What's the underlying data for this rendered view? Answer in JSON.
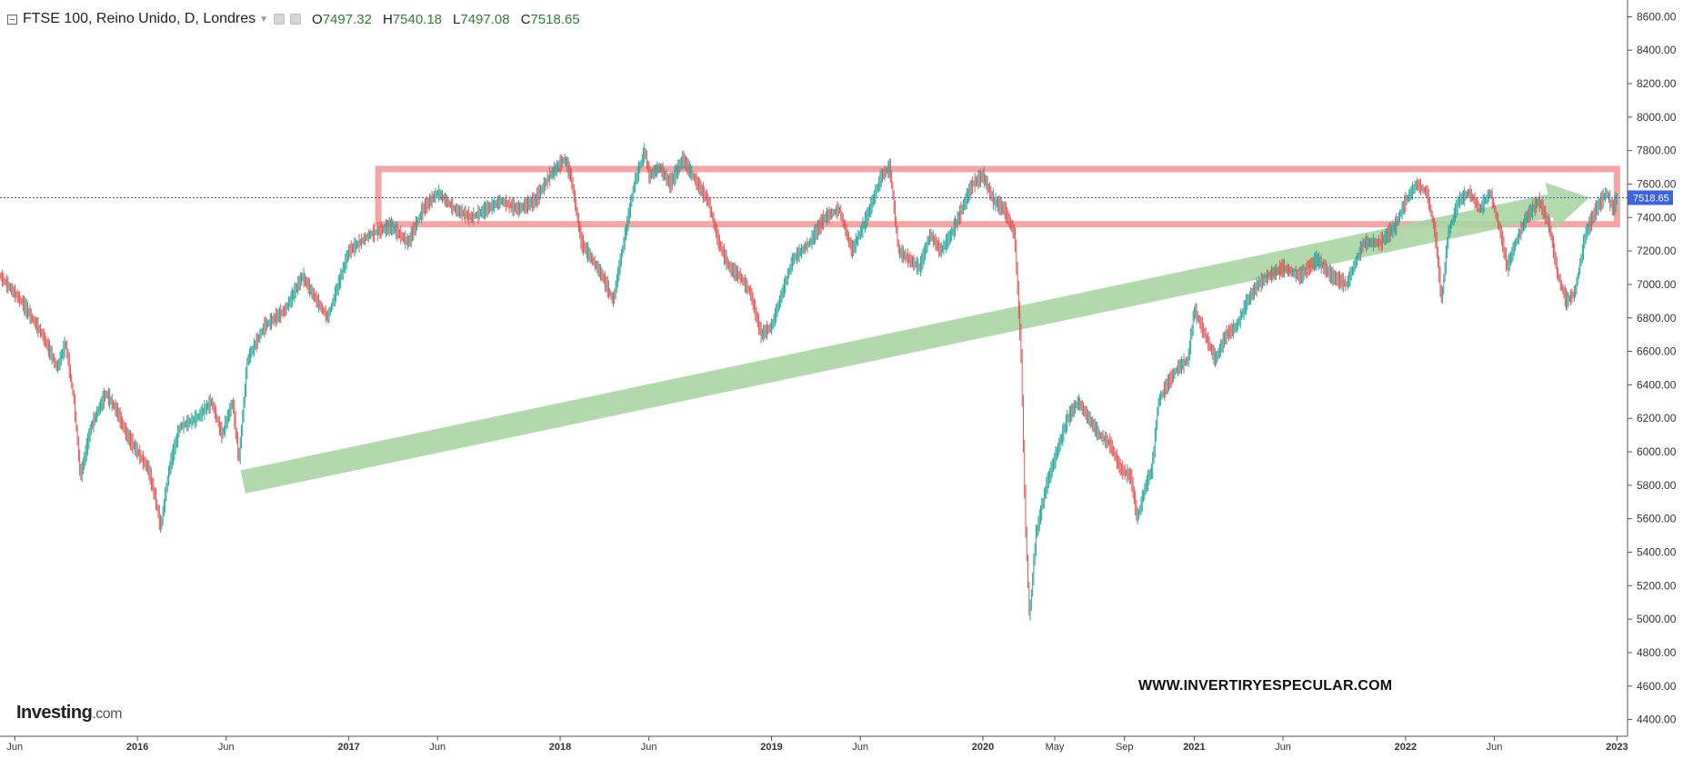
{
  "header": {
    "symbol": "FTSE 100, Reino Unido, D, Londres",
    "open_label": "O",
    "open": "7497.32",
    "high_label": "H",
    "high": "7540.18",
    "low_label": "L",
    "low": "7497.08",
    "close_label": "C",
    "close": "7518.65"
  },
  "watermark": "WWW.INVERTIRYESPECULAR.COM",
  "logo": {
    "name": "Investing",
    "suffix": ".com"
  },
  "chart_data": {
    "type": "line",
    "title": "FTSE 100, Reino Unido, D, Londres",
    "xlabel": "",
    "ylabel": "",
    "ylim": [
      4300,
      8700
    ],
    "xlim": [
      2015.35,
      2023.05
    ],
    "y_ticks": [
      "4400.00",
      "4600.00",
      "4800.00",
      "5000.00",
      "5200.00",
      "5400.00",
      "5600.00",
      "5800.00",
      "6000.00",
      "6200.00",
      "6400.00",
      "6600.00",
      "6800.00",
      "7000.00",
      "7200.00",
      "7400.00",
      "7600.00",
      "7800.00",
      "8000.00",
      "8200.00",
      "8400.00",
      "8600.00"
    ],
    "x_ticks": [
      {
        "label": "Jun",
        "x": 2015.42
      },
      {
        "label": "2016",
        "x": 2016.0
      },
      {
        "label": "Jun",
        "x": 2016.42
      },
      {
        "label": "2017",
        "x": 2017.0
      },
      {
        "label": "Jun",
        "x": 2017.42
      },
      {
        "label": "2018",
        "x": 2018.0
      },
      {
        "label": "Jun",
        "x": 2018.42
      },
      {
        "label": "2019",
        "x": 2019.0
      },
      {
        "label": "Jun",
        "x": 2019.42
      },
      {
        "label": "2020",
        "x": 2020.0
      },
      {
        "label": "May",
        "x": 2020.34
      },
      {
        "label": "Sep",
        "x": 2020.67
      },
      {
        "label": "2021",
        "x": 2021.0
      },
      {
        "label": "Jun",
        "x": 2021.42
      },
      {
        "label": "2022",
        "x": 2022.0
      },
      {
        "label": "Jun",
        "x": 2022.42
      },
      {
        "label": "2023",
        "x": 2023.0
      }
    ],
    "last_price": 7518.65,
    "last_price_label": "7518.65",
    "series": [
      {
        "values": [
          [
            2015.35,
            7050
          ],
          [
            2015.45,
            6900
          ],
          [
            2015.55,
            6700
          ],
          [
            2015.62,
            6500
          ],
          [
            2015.66,
            6650
          ],
          [
            2015.7,
            6300
          ],
          [
            2015.73,
            5850
          ],
          [
            2015.78,
            6150
          ],
          [
            2015.85,
            6350
          ],
          [
            2015.9,
            6250
          ],
          [
            2015.95,
            6100
          ],
          [
            2016.0,
            6000
          ],
          [
            2016.05,
            5900
          ],
          [
            2016.08,
            5750
          ],
          [
            2016.11,
            5550
          ],
          [
            2016.15,
            5900
          ],
          [
            2016.2,
            6150
          ],
          [
            2016.28,
            6200
          ],
          [
            2016.35,
            6300
          ],
          [
            2016.4,
            6100
          ],
          [
            2016.45,
            6300
          ],
          [
            2016.48,
            5950
          ],
          [
            2016.52,
            6550
          ],
          [
            2016.6,
            6750
          ],
          [
            2016.7,
            6850
          ],
          [
            2016.78,
            7050
          ],
          [
            2016.85,
            6900
          ],
          [
            2016.9,
            6800
          ],
          [
            2016.95,
            7000
          ],
          [
            2017.0,
            7200
          ],
          [
            2017.05,
            7250
          ],
          [
            2017.1,
            7300
          ],
          [
            2017.2,
            7350
          ],
          [
            2017.28,
            7250
          ],
          [
            2017.35,
            7450
          ],
          [
            2017.42,
            7550
          ],
          [
            2017.5,
            7450
          ],
          [
            2017.58,
            7400
          ],
          [
            2017.65,
            7450
          ],
          [
            2017.72,
            7500
          ],
          [
            2017.8,
            7450
          ],
          [
            2017.88,
            7500
          ],
          [
            2017.95,
            7650
          ],
          [
            2018.02,
            7750
          ],
          [
            2018.05,
            7650
          ],
          [
            2018.1,
            7250
          ],
          [
            2018.15,
            7150
          ],
          [
            2018.2,
            7050
          ],
          [
            2018.25,
            6900
          ],
          [
            2018.3,
            7250
          ],
          [
            2018.35,
            7600
          ],
          [
            2018.4,
            7800
          ],
          [
            2018.42,
            7650
          ],
          [
            2018.47,
            7700
          ],
          [
            2018.52,
            7600
          ],
          [
            2018.58,
            7750
          ],
          [
            2018.65,
            7600
          ],
          [
            2018.7,
            7500
          ],
          [
            2018.75,
            7250
          ],
          [
            2018.8,
            7100
          ],
          [
            2018.85,
            7050
          ],
          [
            2018.9,
            6950
          ],
          [
            2018.95,
            6700
          ],
          [
            2019.0,
            6750
          ],
          [
            2019.05,
            6950
          ],
          [
            2019.1,
            7150
          ],
          [
            2019.18,
            7250
          ],
          [
            2019.25,
            7400
          ],
          [
            2019.32,
            7450
          ],
          [
            2019.38,
            7200
          ],
          [
            2019.45,
            7400
          ],
          [
            2019.52,
            7650
          ],
          [
            2019.56,
            7700
          ],
          [
            2019.6,
            7200
          ],
          [
            2019.65,
            7150
          ],
          [
            2019.7,
            7100
          ],
          [
            2019.75,
            7300
          ],
          [
            2019.8,
            7200
          ],
          [
            2019.85,
            7300
          ],
          [
            2019.9,
            7450
          ],
          [
            2019.95,
            7600
          ],
          [
            2020.0,
            7650
          ],
          [
            2020.05,
            7500
          ],
          [
            2020.1,
            7450
          ],
          [
            2020.15,
            7300
          ],
          [
            2020.18,
            6600
          ],
          [
            2020.2,
            5600
          ],
          [
            2020.22,
            5000
          ],
          [
            2020.25,
            5500
          ],
          [
            2020.3,
            5800
          ],
          [
            2020.35,
            6000
          ],
          [
            2020.4,
            6200
          ],
          [
            2020.45,
            6300
          ],
          [
            2020.5,
            6200
          ],
          [
            2020.55,
            6100
          ],
          [
            2020.6,
            6050
          ],
          [
            2020.65,
            5900
          ],
          [
            2020.7,
            5850
          ],
          [
            2020.73,
            5600
          ],
          [
            2020.77,
            5800
          ],
          [
            2020.8,
            5900
          ],
          [
            2020.83,
            6300
          ],
          [
            2020.87,
            6400
          ],
          [
            2020.92,
            6500
          ],
          [
            2020.97,
            6550
          ],
          [
            2021.0,
            6850
          ],
          [
            2021.05,
            6700
          ],
          [
            2021.1,
            6550
          ],
          [
            2021.15,
            6700
          ],
          [
            2021.2,
            6750
          ],
          [
            2021.25,
            6900
          ],
          [
            2021.3,
            7000
          ],
          [
            2021.35,
            7050
          ],
          [
            2021.42,
            7100
          ],
          [
            2021.5,
            7050
          ],
          [
            2021.58,
            7150
          ],
          [
            2021.65,
            7050
          ],
          [
            2021.72,
            7000
          ],
          [
            2021.8,
            7250
          ],
          [
            2021.88,
            7250
          ],
          [
            2021.95,
            7350
          ],
          [
            2022.0,
            7500
          ],
          [
            2022.05,
            7600
          ],
          [
            2022.1,
            7550
          ],
          [
            2022.14,
            7300
          ],
          [
            2022.17,
            6900
          ],
          [
            2022.2,
            7300
          ],
          [
            2022.25,
            7500
          ],
          [
            2022.3,
            7550
          ],
          [
            2022.35,
            7450
          ],
          [
            2022.4,
            7550
          ],
          [
            2022.45,
            7300
          ],
          [
            2022.48,
            7100
          ],
          [
            2022.52,
            7250
          ],
          [
            2022.57,
            7400
          ],
          [
            2022.63,
            7500
          ],
          [
            2022.68,
            7350
          ],
          [
            2022.72,
            7050
          ],
          [
            2022.76,
            6900
          ],
          [
            2022.8,
            6950
          ],
          [
            2022.85,
            7300
          ],
          [
            2022.9,
            7450
          ],
          [
            2022.95,
            7550
          ],
          [
            2022.98,
            7450
          ],
          [
            2023.0,
            7520
          ]
        ]
      }
    ],
    "annotations": [
      {
        "type": "rectangle",
        "color": "#f4a6a6",
        "x_range": [
          2017.14,
          2023.0
        ],
        "y_range": [
          7360,
          7690
        ]
      },
      {
        "type": "arrow",
        "color": "#a8d5a2",
        "from": [
          2016.5,
          5820
        ],
        "to": [
          2022.87,
          7520
        ]
      }
    ]
  }
}
